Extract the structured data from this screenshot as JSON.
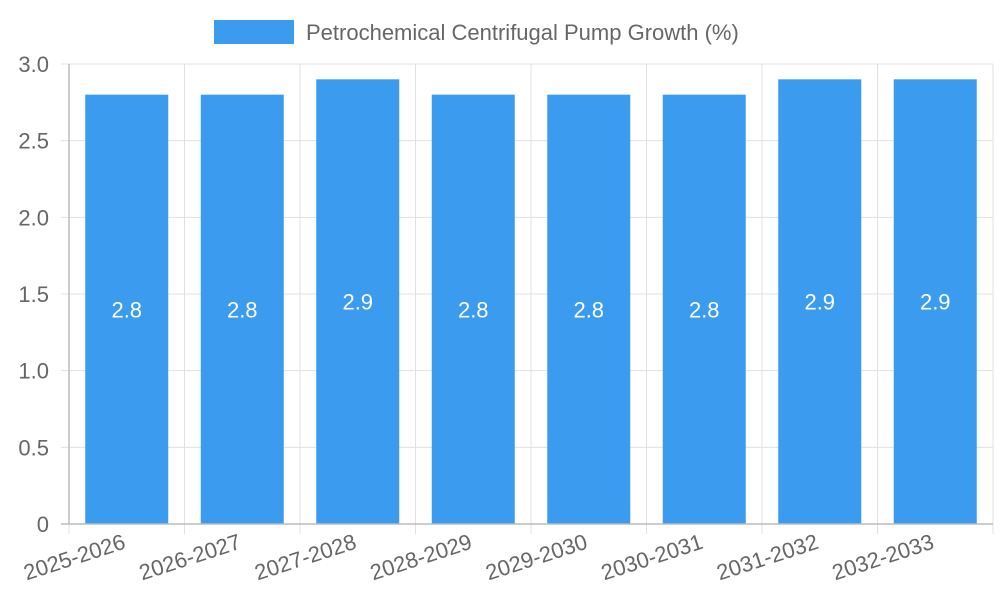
{
  "chart_data": {
    "type": "bar",
    "categories": [
      "2025-2026",
      "2026-2027",
      "2027-2028",
      "2028-2029",
      "2029-2030",
      "2030-2031",
      "2031-2032",
      "2032-2033"
    ],
    "series": [
      {
        "name": "Petrochemical Centrifugal Pump Growth (%)",
        "values": [
          2.8,
          2.8,
          2.9,
          2.8,
          2.8,
          2.8,
          2.9,
          2.9
        ]
      }
    ],
    "ylim": [
      0,
      3.0
    ],
    "yticks": [
      "0",
      "0.5",
      "1.0",
      "1.5",
      "2.0",
      "2.5",
      "3.0"
    ],
    "data_labels": [
      "2.8",
      "2.8",
      "2.9",
      "2.8",
      "2.8",
      "2.8",
      "2.9",
      "2.9"
    ],
    "legend_position": "top",
    "grid": true,
    "colors": {
      "bar": "#3a9bef",
      "grid": "#e0e0e0",
      "axis": "#bbbbbb",
      "text": "#666666",
      "label": "#ffffff"
    }
  }
}
